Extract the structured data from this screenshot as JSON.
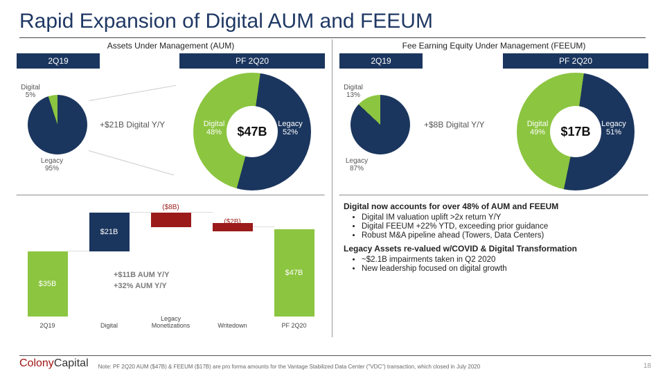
{
  "colors": {
    "navy": "#1b365e",
    "green": "#8cc540",
    "darkred": "#9b1b1b",
    "gray_text": "#555555",
    "title": "#1f3864"
  },
  "title": "Rapid Expansion of Digital AUM and FEEUM",
  "left": {
    "section_title": "Assets Under Management (AUM)",
    "period1": "2Q19",
    "period2": "PF 2Q20",
    "pie_small": {
      "digital_pct": 5,
      "legacy_pct": 95,
      "digital_label": "Digital\n5%",
      "legacy_label": "Legacy\n95%"
    },
    "growth_text": "+$21B Digital Y/Y",
    "donut": {
      "center": "$47B",
      "digital_pct": 48,
      "legacy_pct": 52,
      "digital_label": "Digital\n48%",
      "legacy_label": "Legacy\n52%"
    },
    "waterfall": {
      "annot1": "+$11B AUM Y/Y",
      "annot2": "+32% AUM Y/Y",
      "bars": [
        {
          "cat": "2Q19",
          "label": "$35B",
          "value": 35,
          "base": 0,
          "color": "#8cc540"
        },
        {
          "cat": "Digital",
          "label": "$21B",
          "value": 21,
          "base": 35,
          "color": "#1b365e"
        },
        {
          "cat": "Legacy Monetizations",
          "label": "($8B)",
          "value": 8,
          "base": 48,
          "color": "#9b1b1b"
        },
        {
          "cat": "Writedown",
          "label": "($2B)",
          "value": 2,
          "base": 46,
          "color": "#9b1b1b"
        },
        {
          "cat": "PF 2Q20",
          "label": "$47B",
          "value": 47,
          "base": 0,
          "color": "#8cc540"
        }
      ]
    }
  },
  "right": {
    "section_title": "Fee Earning Equity Under Management (FEEUM)",
    "period1": "2Q19",
    "period2": "PF 2Q20",
    "pie_small": {
      "digital_pct": 13,
      "legacy_pct": 87,
      "digital_label": "Digital\n13%",
      "legacy_label": "Legacy\n87%"
    },
    "growth_text": "+$8B Digital Y/Y",
    "donut": {
      "center": "$17B",
      "digital_pct": 49,
      "legacy_pct": 51,
      "digital_label": "Digital\n49%",
      "legacy_label": "Legacy\n51%"
    },
    "bullets": {
      "h1": "Digital now accounts for over 48% of AUM and FEEUM",
      "g1": [
        "Digital IM valuation uplift >2x return Y/Y",
        "Digital FEEUM +22% YTD, exceeding prior guidance",
        "Robust M&A pipeline ahead (Towers, Data Centers)"
      ],
      "h2": "Legacy Assets re-valued w/COVID & Digital Transformation",
      "g2": [
        "~$2.1B impairments taken in Q2 2020",
        "New leadership focused on digital growth"
      ]
    }
  },
  "footer": {
    "logo1": "Colony",
    "logo2": "Capital",
    "note": "Note: PF 2Q20 AUM ($47B) & FEEUM ($17B) are pro forma amounts for the Vantage Stabilized Data Center (\"VDC\") transaction, which closed in July 2020",
    "page": "18"
  }
}
